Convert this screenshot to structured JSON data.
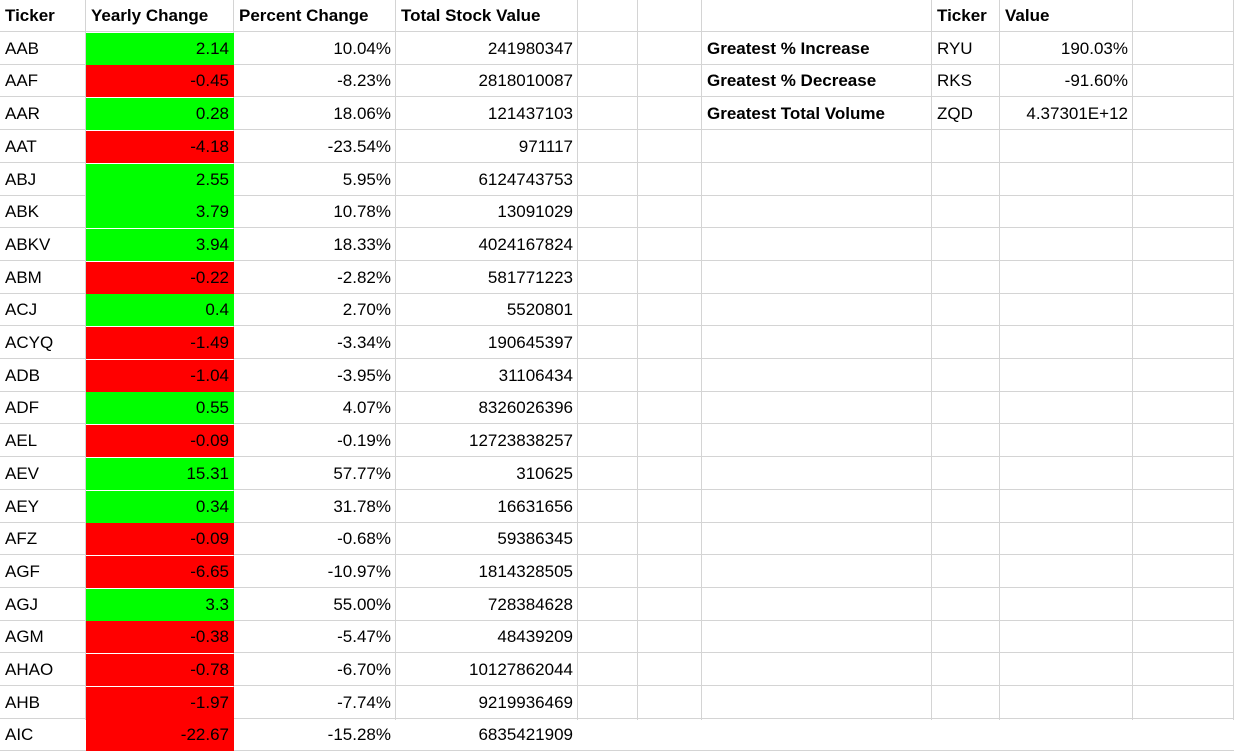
{
  "headers": {
    "ticker": "Ticker",
    "yearly_change": "Yearly Change",
    "percent_change": "Percent Change",
    "total_stock_value": "Total Stock Value",
    "summary_ticker": "Ticker",
    "summary_value": "Value"
  },
  "rows": [
    {
      "ticker": "AAB",
      "yearly": "2.14",
      "percent": "10.04%",
      "total": "241980347",
      "sign": "pos"
    },
    {
      "ticker": "AAF",
      "yearly": "-0.45",
      "percent": "-8.23%",
      "total": "2818010087",
      "sign": "neg"
    },
    {
      "ticker": "AAR",
      "yearly": "0.28",
      "percent": "18.06%",
      "total": "121437103",
      "sign": "pos"
    },
    {
      "ticker": "AAT",
      "yearly": "-4.18",
      "percent": "-23.54%",
      "total": "971117",
      "sign": "neg"
    },
    {
      "ticker": "ABJ",
      "yearly": "2.55",
      "percent": "5.95%",
      "total": "6124743753",
      "sign": "pos"
    },
    {
      "ticker": "ABK",
      "yearly": "3.79",
      "percent": "10.78%",
      "total": "13091029",
      "sign": "pos"
    },
    {
      "ticker": "ABKV",
      "yearly": "3.94",
      "percent": "18.33%",
      "total": "4024167824",
      "sign": "pos"
    },
    {
      "ticker": "ABM",
      "yearly": "-0.22",
      "percent": "-2.82%",
      "total": "581771223",
      "sign": "neg"
    },
    {
      "ticker": "ACJ",
      "yearly": "0.4",
      "percent": "2.70%",
      "total": "5520801",
      "sign": "pos"
    },
    {
      "ticker": "ACYQ",
      "yearly": "-1.49",
      "percent": "-3.34%",
      "total": "190645397",
      "sign": "neg"
    },
    {
      "ticker": "ADB",
      "yearly": "-1.04",
      "percent": "-3.95%",
      "total": "31106434",
      "sign": "neg"
    },
    {
      "ticker": "ADF",
      "yearly": "0.55",
      "percent": "4.07%",
      "total": "8326026396",
      "sign": "pos"
    },
    {
      "ticker": "AEL",
      "yearly": "-0.09",
      "percent": "-0.19%",
      "total": "12723838257",
      "sign": "neg"
    },
    {
      "ticker": "AEV",
      "yearly": "15.31",
      "percent": "57.77%",
      "total": "310625",
      "sign": "pos"
    },
    {
      "ticker": "AEY",
      "yearly": "0.34",
      "percent": "31.78%",
      "total": "16631656",
      "sign": "pos"
    },
    {
      "ticker": "AFZ",
      "yearly": "-0.09",
      "percent": "-0.68%",
      "total": "59386345",
      "sign": "neg"
    },
    {
      "ticker": "AGF",
      "yearly": "-6.65",
      "percent": "-10.97%",
      "total": "1814328505",
      "sign": "neg"
    },
    {
      "ticker": "AGJ",
      "yearly": "3.3",
      "percent": "55.00%",
      "total": "728384628",
      "sign": "pos"
    },
    {
      "ticker": "AGM",
      "yearly": "-0.38",
      "percent": "-5.47%",
      "total": "48439209",
      "sign": "neg"
    },
    {
      "ticker": "AHAO",
      "yearly": "-0.78",
      "percent": "-6.70%",
      "total": "10127862044",
      "sign": "neg"
    },
    {
      "ticker": "AHB",
      "yearly": "-1.97",
      "percent": "-7.74%",
      "total": "9219936469",
      "sign": "neg"
    },
    {
      "ticker": "AIC",
      "yearly": "-22.67",
      "percent": "-15.28%",
      "total": "6835421909",
      "sign": "neg"
    }
  ],
  "summary": [
    {
      "label": "Greatest % Increase",
      "ticker": "RYU",
      "value": "190.03%"
    },
    {
      "label": "Greatest % Decrease",
      "ticker": "RKS",
      "value": "-91.60%"
    },
    {
      "label": "Greatest Total Volume",
      "ticker": "ZQD",
      "value": "4.37301E+12"
    }
  ],
  "colors": {
    "positive_fill": "#00ff00",
    "negative_fill": "#ff0000",
    "grid": "#d4d4d4"
  }
}
